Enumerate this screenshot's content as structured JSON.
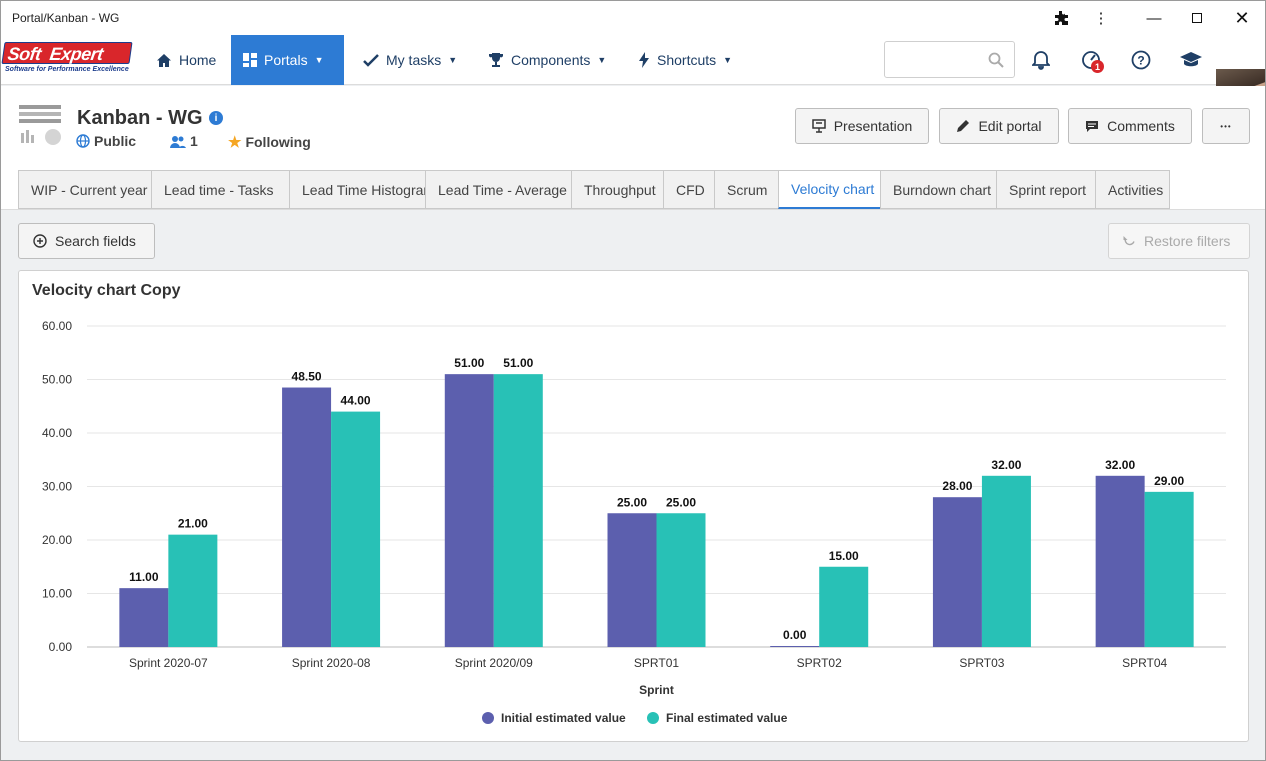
{
  "window": {
    "title": "Portal/Kanban - WG"
  },
  "logo": {
    "word1": "Soft",
    "word2": "Expert",
    "tagline": "Software for Performance Excellence"
  },
  "nav": {
    "home": "Home",
    "portals": "Portals",
    "my_tasks": "My tasks",
    "components": "Components",
    "shortcuts": "Shortcuts",
    "notif_badge": "1"
  },
  "portal": {
    "title": "Kanban - WG",
    "visibility": "Public",
    "members": "1",
    "following": "Following"
  },
  "actions": {
    "presentation": "Presentation",
    "edit_portal": "Edit portal",
    "comments": "Comments",
    "more": "•••"
  },
  "tabs": [
    "WIP - Current year",
    "Lead time - Tasks",
    "Lead Time Histogram",
    "Lead Time - Average",
    "Throughput",
    "CFD",
    "Scrum",
    "Velocity chart",
    "Burndown chart",
    "Sprint report",
    "Activities"
  ],
  "active_tab": "Velocity chart",
  "filters": {
    "search_fields": "Search fields",
    "restore_filters": "Restore filters"
  },
  "colors": {
    "accent": "#2d7bd4",
    "series1": "#5c5fae",
    "series2": "#28c1b6"
  },
  "chart_data": {
    "type": "bar",
    "title": "Velocity chart Copy",
    "xlabel": "Sprint",
    "ylabel": "",
    "categories": [
      "Sprint 2020-07",
      "Sprint 2020-08",
      "Sprint 2020/09",
      "SPRT01",
      "SPRT02",
      "SPRT03",
      "SPRT04"
    ],
    "series": [
      {
        "name": "Initial estimated value",
        "values": [
          11,
          48.5,
          51,
          25,
          0,
          28,
          32
        ],
        "labels": [
          "11.00",
          "48.50",
          "51.00",
          "25.00",
          "0.00",
          "28.00",
          "32.00"
        ]
      },
      {
        "name": "Final estimated value",
        "values": [
          21,
          44,
          51,
          25,
          15,
          32,
          29
        ],
        "labels": [
          "21.00",
          "44.00",
          "51.00",
          "25.00",
          "15.00",
          "32.00",
          "29.00"
        ]
      }
    ],
    "yticks": [
      "0.00",
      "10.00",
      "20.00",
      "30.00",
      "40.00",
      "50.00",
      "60.00"
    ],
    "ylim": [
      0,
      60
    ],
    "grid": true,
    "legend": "bottom"
  }
}
